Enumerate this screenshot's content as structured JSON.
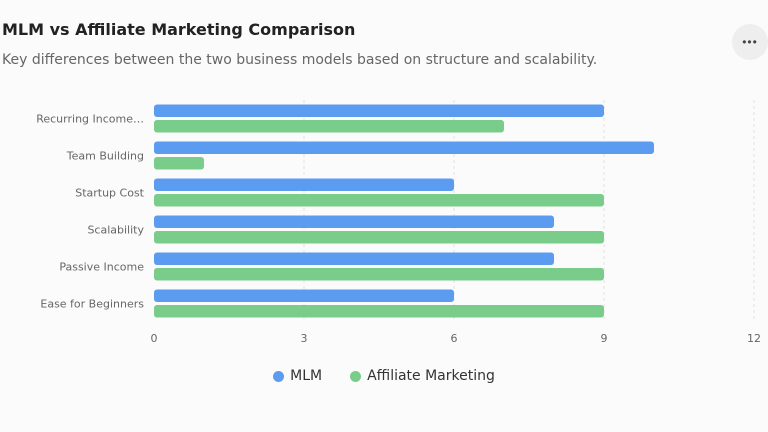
{
  "header": {
    "title": "MLM vs Affiliate Marketing Comparison",
    "subtitle": "Key differences between the two business models based on structure and scalability.",
    "menu_icon": "more-horizontal-icon"
  },
  "colors": {
    "mlm": "#5b9cf0",
    "affiliate": "#79cc8a",
    "grid": "#e2e2e2"
  },
  "chart_data": {
    "type": "bar",
    "orientation": "horizontal",
    "categories": [
      "Recurring Income…",
      "Team Building",
      "Startup Cost",
      "Scalability",
      "Passive Income",
      "Ease for Beginners"
    ],
    "series": [
      {
        "name": "MLM",
        "values": [
          9,
          10,
          6,
          8,
          8,
          6
        ]
      },
      {
        "name": "Affiliate Marketing",
        "values": [
          7,
          1,
          9,
          9,
          9,
          9
        ]
      }
    ],
    "xlim": [
      0,
      12
    ],
    "xticks": [
      0,
      3,
      6,
      9,
      12
    ],
    "grid": true,
    "legend_position": "bottom"
  }
}
